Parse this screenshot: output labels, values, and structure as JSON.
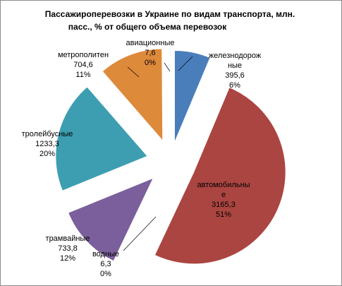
{
  "chart_data": {
    "type": "pie",
    "exploded": true,
    "title_lines": [
      "Пассажироперевозки  в Украине  по видам  транспорта,  млн.",
      "пасс., % от общего объема  перевозок"
    ],
    "slices": [
      {
        "id": "railway",
        "label_lines": [
          "железнодорож",
          "ные"
        ],
        "value": 395.6,
        "value_text": "395,6",
        "percent_text": "6%",
        "color": "#4a7ebb"
      },
      {
        "id": "road",
        "label_lines": [
          "автомобильны",
          "е"
        ],
        "value": 3165.3,
        "value_text": "3165,3",
        "percent_text": "51%",
        "color": "#ab4541"
      },
      {
        "id": "water",
        "label_lines": [
          "водные"
        ],
        "value": 6.3,
        "value_text": "6,3",
        "percent_text": "0%",
        "color": "#8fad4a"
      },
      {
        "id": "tram",
        "label_lines": [
          "трамвайные"
        ],
        "value": 733.8,
        "value_text": "733,8",
        "percent_text": "12%",
        "color": "#7b5f9c"
      },
      {
        "id": "trolley",
        "label_lines": [
          "тролейбусные"
        ],
        "value": 1233.3,
        "value_text": "1233,3",
        "percent_text": "20%",
        "color": "#3d9eb2"
      },
      {
        "id": "metro",
        "label_lines": [
          "метрополитен"
        ],
        "value": 704.6,
        "value_text": "704,6",
        "percent_text": "11%",
        "color": "#de8a3b"
      },
      {
        "id": "aviation",
        "label_lines": [
          "авиационные"
        ],
        "value": 7.6,
        "value_text": "7,6",
        "percent_text": "0%",
        "color": "#8db3e2"
      }
    ]
  }
}
